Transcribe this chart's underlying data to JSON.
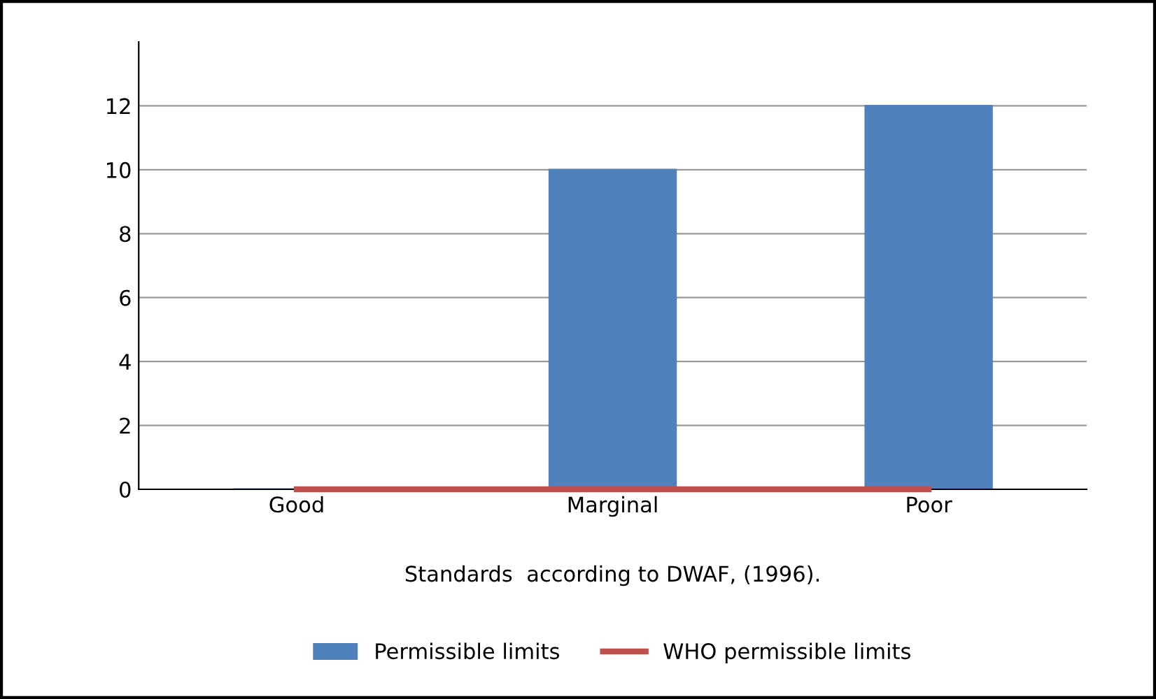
{
  "chart_data": {
    "type": "bar",
    "xlabel": "Standards  according to DWAF, (1996).",
    "categories": [
      "Good",
      "Marginal",
      "Poor"
    ],
    "series": [
      {
        "name": "Permissible limits",
        "color": "#4f81bd",
        "values": [
          0,
          10,
          12
        ]
      },
      {
        "name": "WHO permissible limits",
        "color": "#c0504d",
        "type": "line",
        "values": [
          0,
          0,
          0
        ]
      }
    ],
    "ylim": [
      0,
      14
    ],
    "yticks": [
      0,
      2,
      4,
      6,
      8,
      10,
      12
    ],
    "grid": "y",
    "legend": "bottom"
  }
}
